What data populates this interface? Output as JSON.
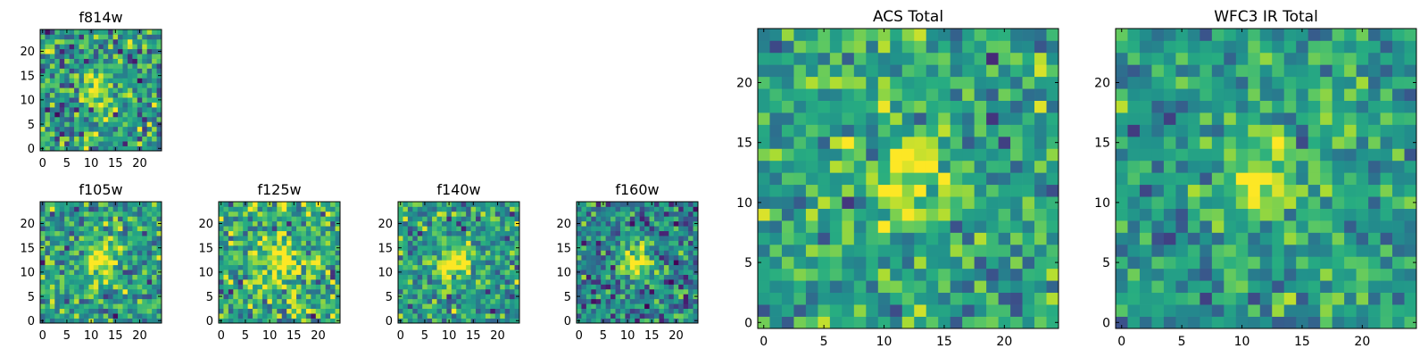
{
  "chart_data": {
    "type": "heatmap",
    "colormap": "viridis",
    "panels": [
      {
        "id": "f814w",
        "title": "f814w",
        "grid_size": 25,
        "xlim": [
          0,
          24
        ],
        "ylim": [
          0,
          24
        ],
        "x_ticks": [
          0,
          5,
          10,
          15,
          20
        ],
        "y_ticks": [
          0,
          5,
          10,
          15,
          20
        ],
        "source_center": [
          11,
          12
        ],
        "source_width": 2.2,
        "source_peak": 0.55,
        "noise": 0.26,
        "base": 0.55,
        "seed": 3
      },
      {
        "id": "f105w",
        "title": "f105w",
        "grid_size": 25,
        "xlim": [
          0,
          24
        ],
        "ylim": [
          0,
          24
        ],
        "x_ticks": [
          0,
          5,
          10,
          15,
          20
        ],
        "y_ticks": [
          0,
          5,
          10,
          15,
          20
        ],
        "source_center": [
          12,
          13
        ],
        "source_width": 2.6,
        "source_peak": 0.5,
        "noise": 0.23,
        "base": 0.55,
        "seed": 11
      },
      {
        "id": "f125w",
        "title": "f125w",
        "grid_size": 25,
        "xlim": [
          0,
          24
        ],
        "ylim": [
          0,
          24
        ],
        "x_ticks": [
          0,
          5,
          10,
          15,
          20
        ],
        "y_ticks": [
          0,
          5,
          10,
          15,
          20
        ],
        "source_center": [
          12,
          12
        ],
        "source_width": 2.6,
        "source_peak": 0.45,
        "noise": 0.25,
        "base": 0.62,
        "seed": 17
      },
      {
        "id": "f140w",
        "title": "f140w",
        "grid_size": 25,
        "xlim": [
          0,
          24
        ],
        "ylim": [
          0,
          24
        ],
        "x_ticks": [
          0,
          5,
          10,
          15,
          20
        ],
        "y_ticks": [
          0,
          5,
          10,
          15,
          20
        ],
        "source_center": [
          11,
          12
        ],
        "source_width": 2.4,
        "source_peak": 0.5,
        "noise": 0.22,
        "base": 0.55,
        "seed": 23
      },
      {
        "id": "f160w",
        "title": "f160w",
        "grid_size": 25,
        "xlim": [
          0,
          24
        ],
        "ylim": [
          0,
          24
        ],
        "x_ticks": [
          0,
          5,
          10,
          15,
          20
        ],
        "y_ticks": [
          0,
          5,
          10,
          15,
          20
        ],
        "source_center": [
          12,
          12
        ],
        "source_width": 2.4,
        "source_peak": 0.6,
        "noise": 0.22,
        "base": 0.45,
        "seed": 29
      },
      {
        "id": "acs_total",
        "title": "ACS Total",
        "grid_size": 25,
        "xlim": [
          0,
          24
        ],
        "ylim": [
          0,
          24
        ],
        "x_ticks": [
          0,
          5,
          10,
          15,
          20
        ],
        "y_ticks": [
          0,
          5,
          10,
          15,
          20
        ],
        "source_center": [
          12,
          12
        ],
        "source_width": 2.0,
        "source_peak": 0.5,
        "noise": 0.2,
        "base": 0.58,
        "seed": 41
      },
      {
        "id": "wfc3_ir_total",
        "title": "WFC3 IR Total",
        "grid_size": 25,
        "xlim": [
          0,
          24
        ],
        "ylim": [
          0,
          24
        ],
        "x_ticks": [
          0,
          5,
          10,
          15,
          20
        ],
        "y_ticks": [
          0,
          5,
          10,
          15,
          20
        ],
        "source_center": [
          12,
          12
        ],
        "source_width": 2.2,
        "source_peak": 0.45,
        "noise": 0.18,
        "base": 0.55,
        "seed": 53
      }
    ]
  }
}
